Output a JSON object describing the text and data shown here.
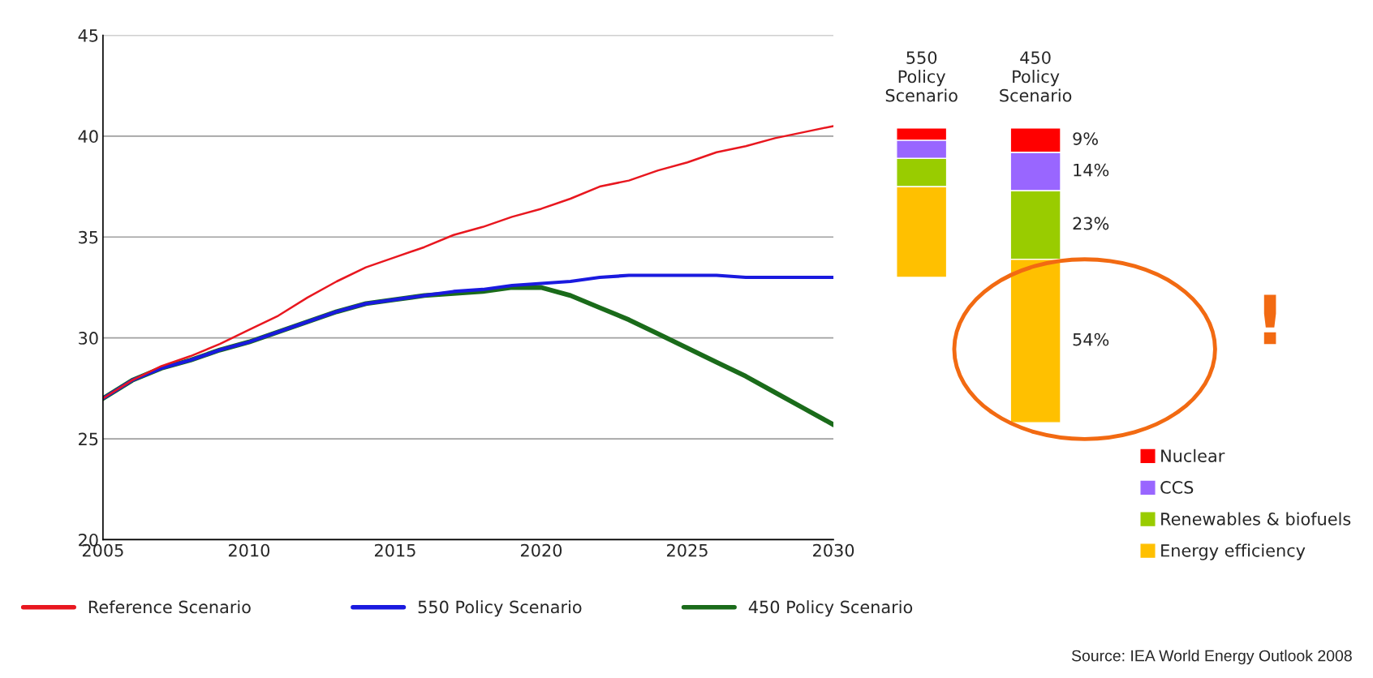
{
  "chart_data": [
    {
      "type": "line",
      "x": [
        2005,
        2006,
        2007,
        2008,
        2009,
        2010,
        2011,
        2012,
        2013,
        2014,
        2015,
        2016,
        2017,
        2018,
        2019,
        2020,
        2021,
        2022,
        2023,
        2024,
        2025,
        2026,
        2027,
        2028,
        2029,
        2030
      ],
      "series": [
        {
          "name": "Reference Scenario",
          "color": "#e8171f",
          "values": [
            27.0,
            27.9,
            28.6,
            29.1,
            29.7,
            30.4,
            31.1,
            32.0,
            32.8,
            33.5,
            34.0,
            34.5,
            35.1,
            35.5,
            36.0,
            36.4,
            36.9,
            37.5,
            37.8,
            38.3,
            38.7,
            39.2,
            39.5,
            39.9,
            40.2,
            40.5
          ]
        },
        {
          "name": "550 Policy Scenario",
          "color": "#1a1adf",
          "values": [
            27.0,
            27.9,
            28.5,
            28.9,
            29.4,
            29.8,
            30.3,
            30.8,
            31.3,
            31.7,
            31.9,
            32.1,
            32.3,
            32.4,
            32.6,
            32.7,
            32.8,
            33.0,
            33.1,
            33.1,
            33.1,
            33.1,
            33.0,
            33.0,
            33.0,
            33.0
          ]
        },
        {
          "name": "450 Policy Scenario",
          "color": "#1a6b1a",
          "values": [
            27.0,
            27.9,
            28.5,
            28.9,
            29.4,
            29.8,
            30.3,
            30.8,
            31.3,
            31.7,
            31.9,
            32.1,
            32.2,
            32.3,
            32.5,
            32.5,
            32.1,
            31.5,
            30.9,
            30.2,
            29.5,
            28.8,
            28.1,
            27.3,
            26.5,
            25.7
          ]
        }
      ],
      "xlim": [
        2005,
        2030
      ],
      "xticks": [
        2005,
        2010,
        2015,
        2020,
        2025,
        2030
      ],
      "ylim": [
        20,
        45
      ],
      "yticks": [
        20,
        25,
        30,
        35,
        40,
        45
      ],
      "grid": "y",
      "legend": "bottom",
      "annotations": [
        "Source: IEA World Energy Outlook 2008"
      ]
    },
    {
      "type": "bar",
      "categories": [
        "550 Policy Scenario",
        "450 Policy Scenario"
      ],
      "series": [
        {
          "name": "Energy efficiency",
          "color": "#ffc000",
          "base": [
            33.0,
            25.8
          ],
          "values": [
            4.5,
            8.1
          ]
        },
        {
          "name": "Renewables & biofuels",
          "color": "#99cc00",
          "base": [
            37.5,
            33.9
          ],
          "values": [
            1.4,
            3.4
          ]
        },
        {
          "name": "CCS",
          "color": "#9966ff",
          "base": [
            38.9,
            37.3
          ],
          "values": [
            0.9,
            1.9
          ]
        },
        {
          "name": "Nuclear",
          "color": "#ff0000",
          "base": [
            39.8,
            39.2
          ],
          "values": [
            0.6,
            1.2
          ]
        }
      ],
      "ylim": [
        20,
        45
      ],
      "tick_labels": "x",
      "legend": "bottom right",
      "annotations": [
        "54%",
        "23%",
        "14%",
        "9%",
        "!"
      ]
    }
  ]
}
